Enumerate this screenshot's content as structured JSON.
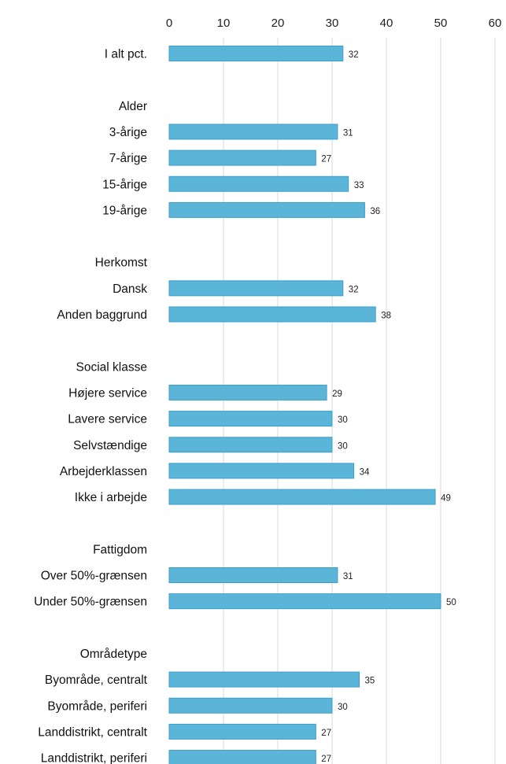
{
  "chart_data": {
    "type": "bar",
    "orientation": "horizontal",
    "title": "",
    "xlabel": "",
    "ylabel": "",
    "xlim": [
      0,
      60
    ],
    "x_ticks": [
      "0",
      "10",
      "20",
      "30",
      "40",
      "50",
      "60"
    ],
    "x_axis_position": "top",
    "grid": true,
    "legend": "none",
    "bar_color": "#5bb5d8",
    "bar_edge_color": "#3c9fc9",
    "categories": [
      {
        "label": "I alt pct.",
        "value": 32
      },
      {
        "label": "",
        "value": null
      },
      {
        "label": "Alder",
        "value": null
      },
      {
        "label": "3-årige",
        "value": 31
      },
      {
        "label": "7-årige",
        "value": 27
      },
      {
        "label": "15-årige",
        "value": 33
      },
      {
        "label": "19-årige",
        "value": 36
      },
      {
        "label": "",
        "value": null
      },
      {
        "label": "Herkomst",
        "value": null
      },
      {
        "label": "Dansk",
        "value": 32
      },
      {
        "label": "Anden baggrund",
        "value": 38
      },
      {
        "label": "",
        "value": null
      },
      {
        "label": "Social klasse",
        "value": null
      },
      {
        "label": "Højere service",
        "value": 29
      },
      {
        "label": "Lavere service",
        "value": 30
      },
      {
        "label": "Selvstændige",
        "value": 30
      },
      {
        "label": "Arbejderklassen",
        "value": 34
      },
      {
        "label": "Ikke i arbejde",
        "value": 49
      },
      {
        "label": "",
        "value": null
      },
      {
        "label": "Fattigdom",
        "value": null
      },
      {
        "label": "Over 50%-grænsen",
        "value": 31
      },
      {
        "label": "Under 50%-grænsen",
        "value": 50
      },
      {
        "label": "",
        "value": null
      },
      {
        "label": "Områdetype",
        "value": null
      },
      {
        "label": "Byområde, centralt",
        "value": 35
      },
      {
        "label": "Byområde, periferi",
        "value": 30
      },
      {
        "label": "Landdistrikt, centralt",
        "value": 27
      },
      {
        "label": "Landdistrikt, periferi",
        "value": 27
      }
    ]
  }
}
